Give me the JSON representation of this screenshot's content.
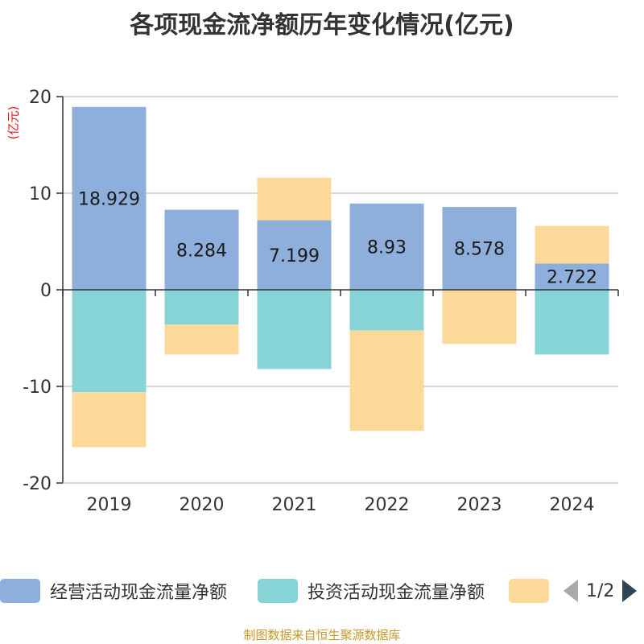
{
  "title": "各项现金流净额历年变化情况(亿元)",
  "unit_label": "(亿元)",
  "source": "制图数据来自恒生聚源数据库",
  "legend": {
    "items": [
      {
        "label": "经营活动现金流量净额",
        "color": "#8eaedb"
      },
      {
        "label": "投资活动现金流量净额",
        "color": "#86d4d6"
      },
      {
        "label": "",
        "color": "#fdd999"
      }
    ],
    "page": "1/2"
  },
  "chart_data": {
    "type": "bar",
    "stacked": true,
    "title": "各项现金流净额历年变化情况(亿元)",
    "ylabel": "(亿元)",
    "ylim": [
      -20,
      20
    ],
    "yticks": [
      20,
      10,
      0,
      -10,
      -20
    ],
    "categories": [
      "2019",
      "2020",
      "2021",
      "2022",
      "2023",
      "2024"
    ],
    "series": [
      {
        "name": "经营活动现金流量净额",
        "color": "#8eaedb",
        "values": [
          18.929,
          8.284,
          7.199,
          8.93,
          8.578,
          2.722
        ],
        "labels": [
          "18.929",
          "8.284",
          "7.199",
          "8.93",
          "8.578",
          "2.722"
        ]
      },
      {
        "name": "投资活动现金流量净额",
        "color": "#86d4d6",
        "values": [
          -10.6,
          -3.6,
          -8.2,
          -4.2,
          0,
          -6.7
        ]
      },
      {
        "name": "",
        "color": "#fdd999",
        "values": [
          -5.7,
          -3.1,
          4.4,
          -10.4,
          -5.6,
          3.9
        ]
      }
    ]
  }
}
